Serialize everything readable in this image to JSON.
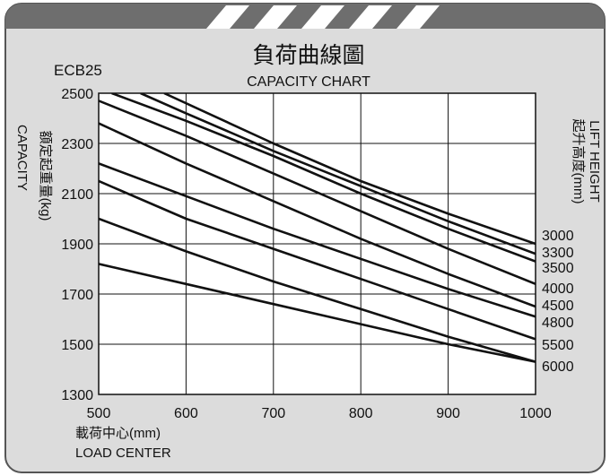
{
  "header": {
    "model": "ECB25",
    "title_cn": "負荷曲線圖",
    "title_en": "CAPACITY CHART"
  },
  "axes": {
    "ylabel_cn": "額定起重量(kg)",
    "ylabel_en": "CAPACITY",
    "xlabel_cn": "載荷中心(mm)",
    "xlabel_en": "LOAD CENTER",
    "right_label_en": "LIFT HEIGHT",
    "right_label_cn": "起升高度(mm)"
  },
  "colors": {
    "panel": "#dcdcdc",
    "header_bar": "#6e6e6e",
    "border": "#555555",
    "line": "#111111",
    "plot_bg": "#ffffff"
  },
  "chart_data": {
    "type": "line",
    "title": "負荷曲線圖 CAPACITY CHART",
    "xlabel": "載荷中心(mm) LOAD CENTER",
    "ylabel": "額定起重量(kg) CAPACITY",
    "xlim": [
      500,
      1000
    ],
    "ylim": [
      1300,
      2500
    ],
    "x_ticks": [
      "500",
      "600",
      "700",
      "800",
      "900",
      "1000"
    ],
    "y_ticks": [
      "2500",
      "2300",
      "2100",
      "1900",
      "1700",
      "1500",
      "1300"
    ],
    "grid": true,
    "series": [
      {
        "name": "3000",
        "points": [
          [
            575,
            2500
          ],
          [
            700,
            2300
          ],
          [
            800,
            2150
          ],
          [
            900,
            2020
          ],
          [
            1000,
            1900
          ]
        ]
      },
      {
        "name": "3300",
        "points": [
          [
            548,
            2500
          ],
          [
            600,
            2420
          ],
          [
            700,
            2270
          ],
          [
            800,
            2130
          ],
          [
            900,
            1990
          ],
          [
            1000,
            1860
          ]
        ]
      },
      {
        "name": "3500",
        "points": [
          [
            515,
            2500
          ],
          [
            600,
            2390
          ],
          [
            700,
            2250
          ],
          [
            800,
            2100
          ],
          [
            900,
            1960
          ],
          [
            1000,
            1830
          ]
        ]
      },
      {
        "name": "4000",
        "points": [
          [
            500,
            2470
          ],
          [
            600,
            2330
          ],
          [
            700,
            2180
          ],
          [
            800,
            2030
          ],
          [
            900,
            1880
          ],
          [
            1000,
            1740
          ]
        ]
      },
      {
        "name": "4500",
        "points": [
          [
            500,
            2380
          ],
          [
            600,
            2220
          ],
          [
            700,
            2070
          ],
          [
            800,
            1920
          ],
          [
            900,
            1780
          ],
          [
            1000,
            1650
          ]
        ]
      },
      {
        "name": "4800",
        "points": [
          [
            500,
            2220
          ],
          [
            600,
            2090
          ],
          [
            700,
            1960
          ],
          [
            800,
            1840
          ],
          [
            900,
            1720
          ],
          [
            1000,
            1610
          ]
        ]
      },
      {
        "name": "5500",
        "points": [
          [
            500,
            2150
          ],
          [
            600,
            2000
          ],
          [
            700,
            1880
          ],
          [
            800,
            1760
          ],
          [
            900,
            1640
          ],
          [
            1000,
            1520
          ]
        ]
      },
      {
        "name": "6000",
        "points": [
          [
            500,
            2000
          ],
          [
            600,
            1870
          ],
          [
            700,
            1750
          ],
          [
            800,
            1640
          ],
          [
            900,
            1530
          ],
          [
            1000,
            1430
          ]
        ]
      },
      {
        "name": "",
        "points": [
          [
            500,
            1820
          ],
          [
            600,
            1740
          ],
          [
            700,
            1660
          ],
          [
            800,
            1580
          ],
          [
            900,
            1500
          ],
          [
            1000,
            1430
          ]
        ]
      }
    ],
    "right_labels": [
      "3000",
      "3300",
      "3500",
      "4000",
      "4500",
      "4800",
      "5500",
      "6000"
    ]
  }
}
